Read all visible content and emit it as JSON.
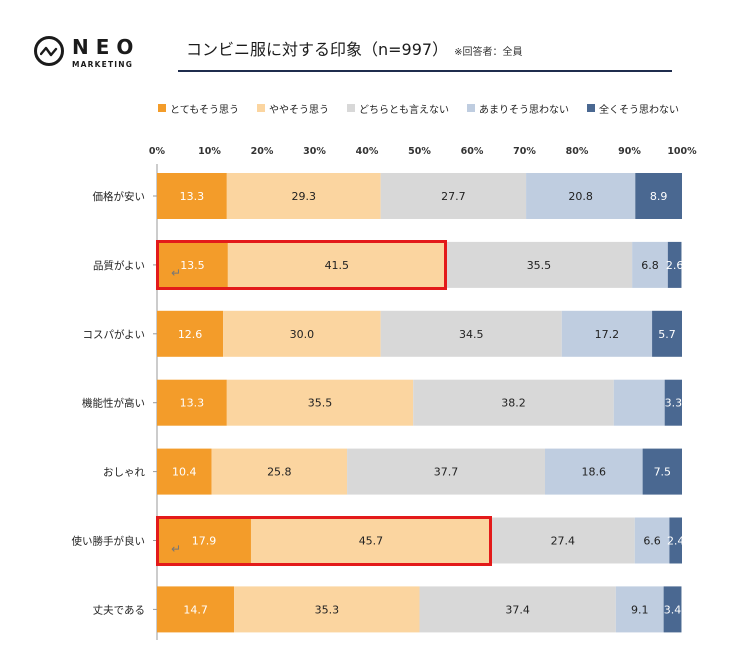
{
  "logo": {
    "word": "NEO",
    "sub": "MARKETING"
  },
  "header": {
    "title": "コンビニ服に対する印象（n=997）",
    "note": "※回答者：全員"
  },
  "colors": [
    "#f39c2a",
    "#fbd5a0",
    "#d8d8d8",
    "#bfcde0",
    "#4a6891"
  ],
  "chart_data": {
    "type": "bar",
    "orientation": "horizontal",
    "stacked": true,
    "xlim": [
      0,
      100
    ],
    "xticks": [
      "0%",
      "10%",
      "20%",
      "30%",
      "40%",
      "50%",
      "60%",
      "70%",
      "80%",
      "90%",
      "100%"
    ],
    "categories": [
      "価格が安い",
      "品質がよい",
      "コスパがよい",
      "機能性が高い",
      "おしゃれ",
      "使い勝手が良い",
      "丈夫である"
    ],
    "series": [
      {
        "name": "とてもそう思う",
        "values": [
          13.3,
          13.5,
          12.6,
          13.3,
          10.4,
          17.9,
          14.7
        ]
      },
      {
        "name": "ややそう思う",
        "values": [
          29.3,
          41.5,
          30.0,
          35.5,
          25.8,
          45.7,
          35.3
        ]
      },
      {
        "name": "どちらとも言えない",
        "values": [
          27.7,
          35.5,
          34.5,
          38.2,
          37.7,
          27.4,
          37.4
        ]
      },
      {
        "name": "あまりそう思わない",
        "values": [
          20.8,
          6.8,
          17.2,
          9.7,
          18.6,
          6.6,
          9.1
        ]
      },
      {
        "name": "全くそう思わない",
        "values": [
          8.9,
          2.6,
          5.7,
          3.3,
          7.5,
          2.4,
          3.4
        ]
      }
    ],
    "hidden_labels": [
      [
        3,
        3
      ]
    ],
    "highlighted_rows": [
      1,
      5
    ]
  }
}
